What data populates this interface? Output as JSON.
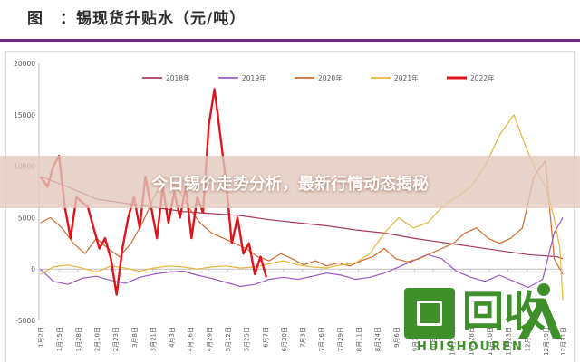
{
  "header": {
    "title": "图　：锡现货升贴水（元/吨）"
  },
  "banner": {
    "text": "今日锡价走势分析，最新行情动态揭秘"
  },
  "logo": {
    "word": "回收",
    "subtext": "HUISHOUREN"
  },
  "chart_data": {
    "type": "line",
    "title": "",
    "xlabel": "",
    "ylabel": "",
    "ylim": [
      -5000,
      20000
    ],
    "yticks": [
      -5000,
      0,
      5000,
      10000,
      15000,
      20000
    ],
    "xlim": [
      0,
      364
    ],
    "xticks": [
      {
        "label": "1月2日",
        "x": 1
      },
      {
        "label": "1月15日",
        "x": 14
      },
      {
        "label": "1月28日",
        "x": 27
      },
      {
        "label": "2月10日",
        "x": 40
      },
      {
        "label": "2月23日",
        "x": 53
      },
      {
        "label": "3月8日",
        "x": 66
      },
      {
        "label": "3月21日",
        "x": 79
      },
      {
        "label": "4月3日",
        "x": 92
      },
      {
        "label": "4月16日",
        "x": 105
      },
      {
        "label": "4月29日",
        "x": 118
      },
      {
        "label": "5月12日",
        "x": 131
      },
      {
        "label": "5月25日",
        "x": 144
      },
      {
        "label": "6月7日",
        "x": 157
      },
      {
        "label": "6月20日",
        "x": 170
      },
      {
        "label": "7月3日",
        "x": 183
      },
      {
        "label": "7月16日",
        "x": 196
      },
      {
        "label": "7月29日",
        "x": 209
      },
      {
        "label": "8月11日",
        "x": 222
      },
      {
        "label": "8月24日",
        "x": 235
      },
      {
        "label": "9月6日",
        "x": 248
      },
      {
        "label": "9月19日",
        "x": 261
      },
      {
        "label": "10月2日",
        "x": 274
      },
      {
        "label": "10月15日",
        "x": 287
      },
      {
        "label": "10月28日",
        "x": 300
      },
      {
        "label": "11月10日",
        "x": 313
      },
      {
        "label": "11月23日",
        "x": 326
      },
      {
        "label": "12月6日",
        "x": 339
      },
      {
        "label": "12月19日",
        "x": 352
      },
      {
        "label": "12月31日",
        "x": 364
      }
    ],
    "grid": false,
    "legend_position": "top",
    "series": [
      {
        "name": "2018年",
        "color": "#a83a5e",
        "width": 1.2,
        "x": [
          1,
          20,
          40,
          60,
          80,
          100,
          120,
          140,
          160,
          180,
          200,
          220,
          240,
          260,
          280,
          300,
          320,
          340,
          360,
          364
        ],
        "y": [
          9000,
          8000,
          6800,
          6400,
          6000,
          5600,
          5400,
          5200,
          4800,
          4500,
          4200,
          3800,
          3500,
          3000,
          2600,
          2200,
          1800,
          1400,
          1200,
          1000
        ]
      },
      {
        "name": "2019年",
        "color": "#9b59c6",
        "width": 1.2,
        "x": [
          1,
          10,
          20,
          30,
          40,
          50,
          60,
          70,
          80,
          90,
          100,
          110,
          120,
          130,
          140,
          150,
          160,
          170,
          180,
          190,
          200,
          210,
          220,
          230,
          240,
          250,
          260,
          270,
          280,
          290,
          300,
          310,
          320,
          330,
          340,
          350,
          358,
          364
        ],
        "y": [
          0,
          -1200,
          -1500,
          -900,
          -700,
          -1100,
          -1400,
          -800,
          -500,
          -300,
          -200,
          -600,
          -900,
          -1300,
          -1700,
          -1500,
          -1000,
          -800,
          -1000,
          -700,
          -400,
          -600,
          -1000,
          -800,
          -400,
          200,
          800,
          1400,
          1000,
          -200,
          -800,
          -1200,
          -600,
          -1200,
          -1800,
          -1000,
          3500,
          5000
        ]
      },
      {
        "name": "2020年",
        "color": "#d06b32",
        "width": 1.2,
        "x": [
          1,
          8,
          16,
          24,
          32,
          40,
          48,
          56,
          64,
          72,
          80,
          88,
          96,
          104,
          112,
          120,
          128,
          136,
          144,
          152,
          160,
          168,
          176,
          184,
          192,
          200,
          208,
          216,
          224,
          232,
          240,
          248,
          256,
          264,
          272,
          280,
          288,
          296,
          304,
          312,
          320,
          328,
          336,
          344,
          352,
          358,
          364
        ],
        "y": [
          4500,
          5000,
          4000,
          2500,
          1500,
          3000,
          2000,
          1200,
          2500,
          4500,
          7000,
          9000,
          8000,
          6000,
          4500,
          3500,
          3000,
          2500,
          2000,
          1200,
          800,
          1500,
          1000,
          400,
          800,
          300,
          600,
          300,
          800,
          1200,
          2000,
          1000,
          700,
          1000,
          1500,
          2000,
          2500,
          3500,
          4000,
          3000,
          2500,
          3000,
          4000,
          9000,
          10500,
          1000,
          -500
        ]
      },
      {
        "name": "2021年",
        "color": "#e8b43a",
        "width": 1.2,
        "x": [
          1,
          10,
          20,
          30,
          40,
          50,
          60,
          70,
          80,
          90,
          100,
          110,
          120,
          130,
          140,
          150,
          160,
          170,
          180,
          190,
          200,
          210,
          220,
          230,
          240,
          250,
          260,
          270,
          280,
          290,
          300,
          310,
          320,
          330,
          338,
          344,
          352,
          358,
          362,
          364
        ],
        "y": [
          -500,
          200,
          400,
          100,
          -300,
          300,
          100,
          -200,
          100,
          300,
          200,
          0,
          200,
          300,
          100,
          200,
          500,
          800,
          400,
          200,
          100,
          400,
          600,
          1500,
          3500,
          5000,
          4000,
          4500,
          6000,
          7000,
          8000,
          10000,
          13000,
          15000,
          12000,
          10000,
          8000,
          5000,
          2000,
          -3000
        ]
      },
      {
        "name": "2022年",
        "color": "#e0151b",
        "width": 2.4,
        "x": [
          1,
          6,
          10,
          14,
          18,
          22,
          26,
          30,
          34,
          38,
          42,
          46,
          50,
          54,
          58,
          62,
          66,
          70,
          74,
          78,
          82,
          86,
          90,
          94,
          98,
          102,
          106,
          110,
          114,
          118,
          122,
          126,
          130,
          134,
          138,
          142,
          146,
          150,
          154,
          158
        ],
        "y": [
          9000,
          8000,
          10000,
          11000,
          6000,
          3000,
          7000,
          6500,
          6000,
          4000,
          2000,
          3000,
          1000,
          -2500,
          2000,
          5000,
          7000,
          4000,
          9000,
          6000,
          3000,
          8000,
          4500,
          7500,
          5000,
          8000,
          3000,
          7000,
          5500,
          14000,
          17500,
          13000,
          8500,
          2500,
          5000,
          1500,
          2500,
          -500,
          1200,
          -800
        ]
      }
    ]
  }
}
